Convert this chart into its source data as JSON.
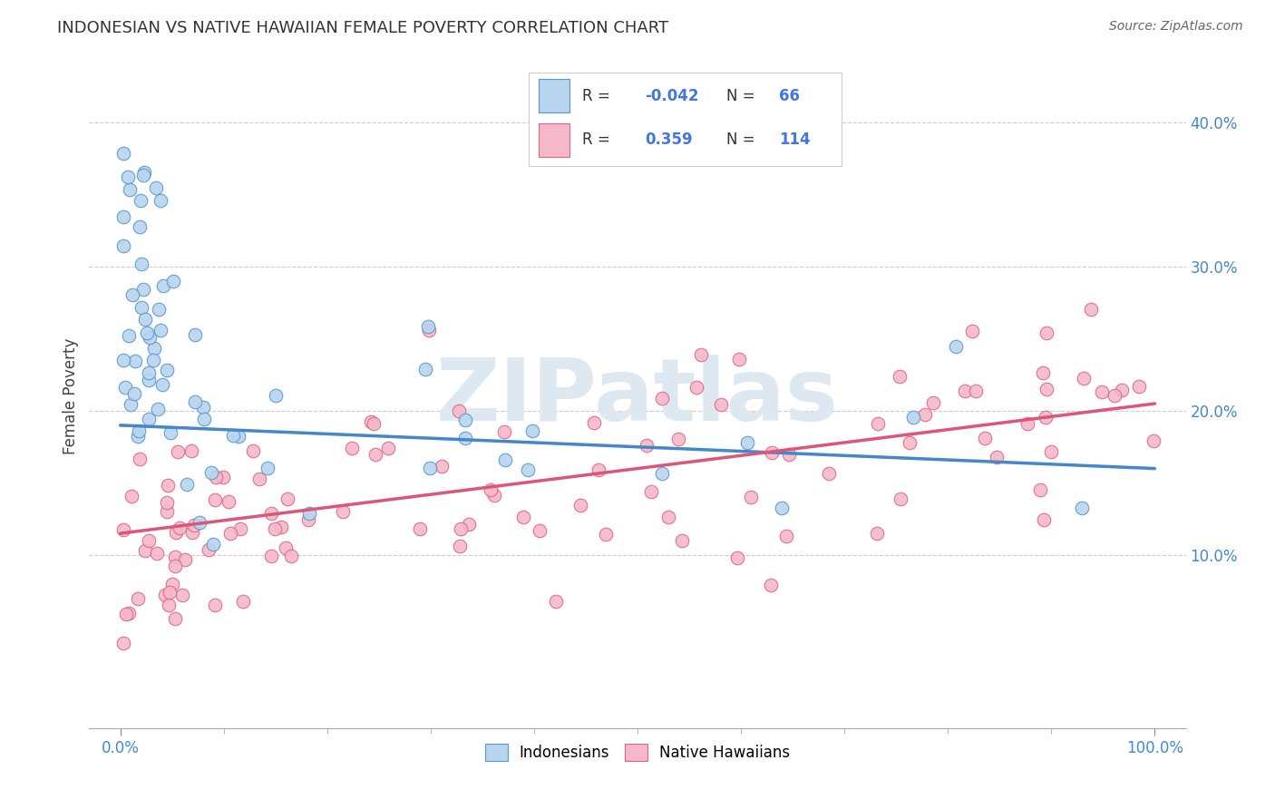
{
  "title": "INDONESIAN VS NATIVE HAWAIIAN FEMALE POVERTY CORRELATION CHART",
  "source": "Source: ZipAtlas.com",
  "ylabel": "Female Poverty",
  "legend_indonesian": "Indonesians",
  "legend_hawaiian": "Native Hawaiians",
  "r_indonesian": -0.042,
  "n_indonesian": 66,
  "r_hawaiian": 0.359,
  "n_hawaiian": 114,
  "color_indonesian_fill": "#b8d4ee",
  "color_indonesian_edge": "#5599cc",
  "color_hawaiian_fill": "#f5b8c8",
  "color_hawaiian_edge": "#dd6688",
  "color_line_indonesian": "#4488cc",
  "color_line_hawaiian": "#dd5577",
  "color_line_dashed": "#aabbcc",
  "color_grid": "#cccccc",
  "color_tick_label": "#4488cc",
  "color_title": "#333333",
  "color_source": "#666666",
  "color_watermark": "#dde8f0",
  "watermark_text": "ZIPatlas",
  "xlim": [
    -3,
    103
  ],
  "ylim": [
    -2,
    44
  ],
  "ytick_vals": [
    10,
    20,
    30,
    40
  ],
  "ytick_labels": [
    "10.0%",
    "20.0%",
    "30.0%",
    "40.0%"
  ],
  "xtick_vals": [
    0,
    100
  ],
  "xtick_labels": [
    "0.0%",
    "100.0%"
  ],
  "indo_trend_start_y": 19.0,
  "indo_trend_end_y": 16.0,
  "haw_trend_start_y": 11.5,
  "haw_trend_end_y": 20.5
}
